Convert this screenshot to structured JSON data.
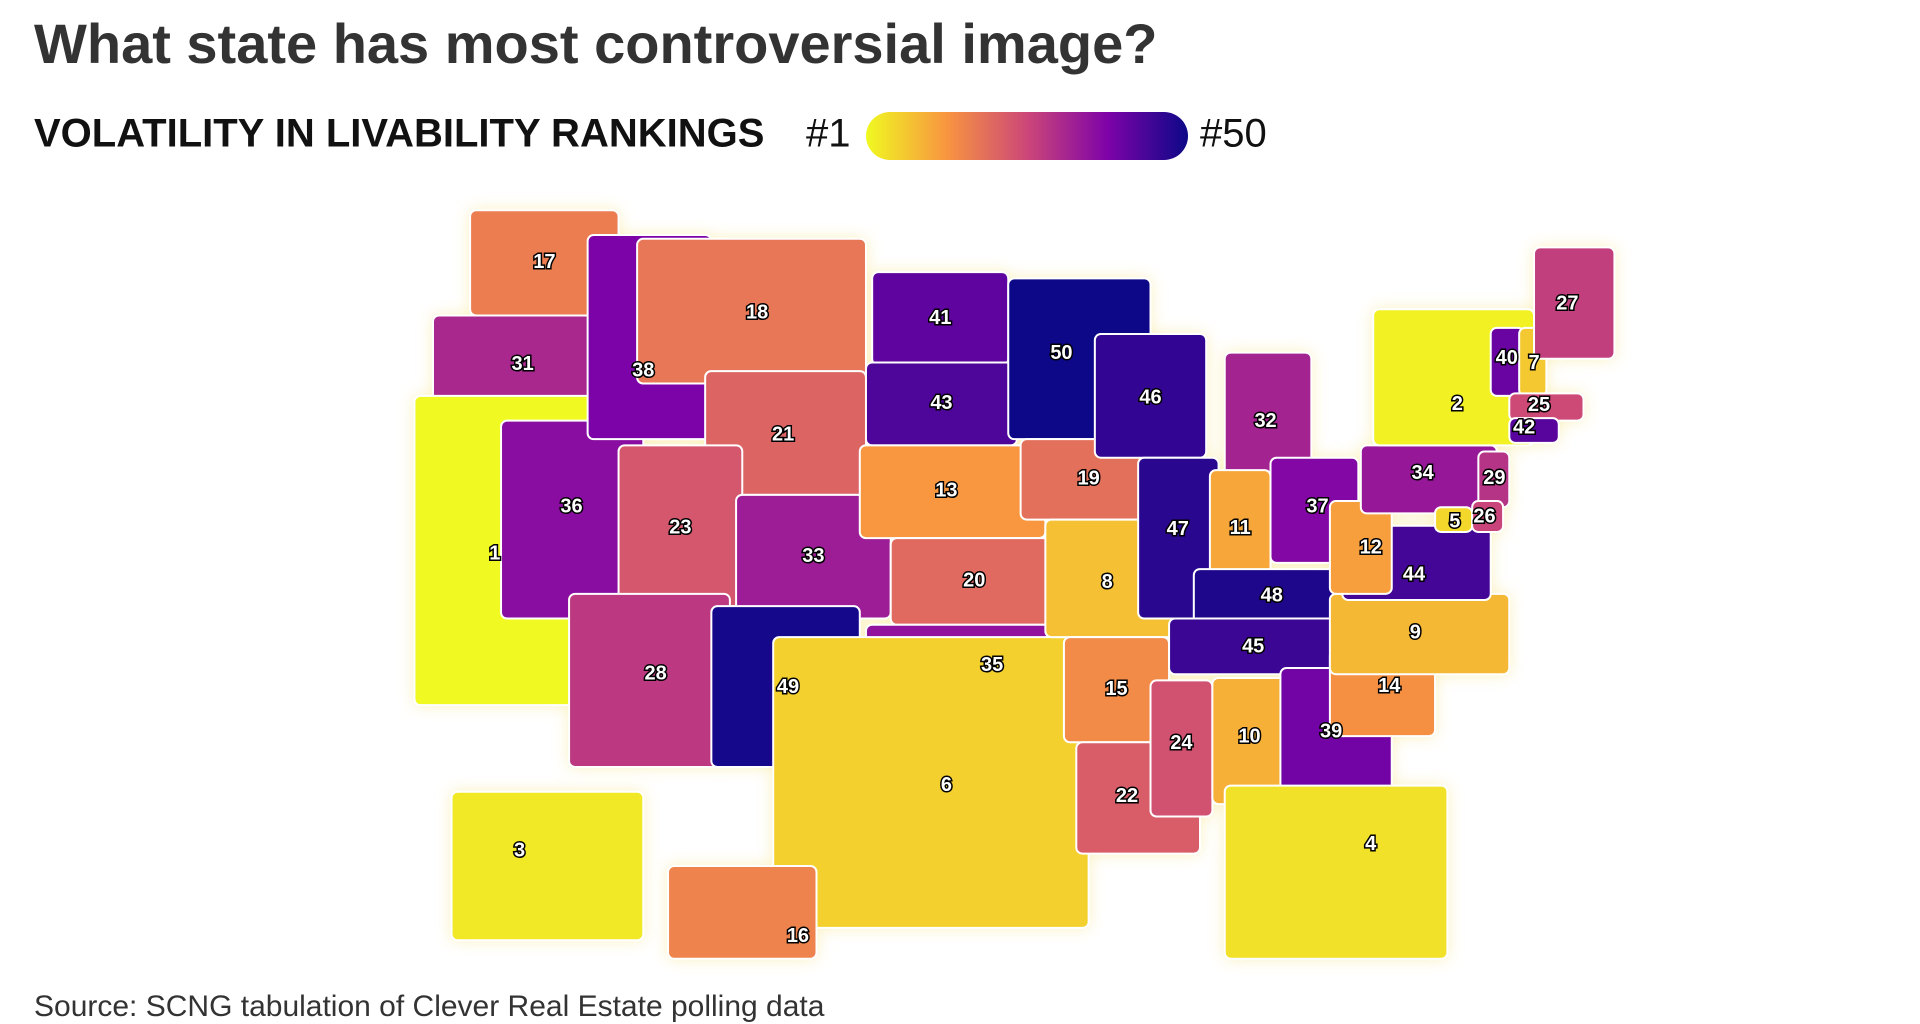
{
  "title": "What state has most controversial image?",
  "subtitle": "VOLATILITY IN LIVABILITY RANKINGS",
  "legend": {
    "min": {
      "value": 1,
      "label": "#1"
    },
    "max": {
      "value": 50,
      "label": "#50"
    }
  },
  "ranks": [
    17,
    31,
    1,
    36,
    38,
    18,
    21,
    23,
    28,
    33,
    49,
    41,
    43,
    13,
    20,
    35,
    6,
    50,
    19,
    8,
    15,
    22,
    46,
    47,
    32,
    11,
    37,
    48,
    45,
    24,
    10,
    39,
    4,
    14,
    9,
    44,
    12,
    34,
    2,
    40,
    7,
    27,
    25,
    42,
    29,
    5,
    26,
    3,
    16
  ],
  "source": "Source: SCNG tabulation of Clever Real Estate polling data"
}
